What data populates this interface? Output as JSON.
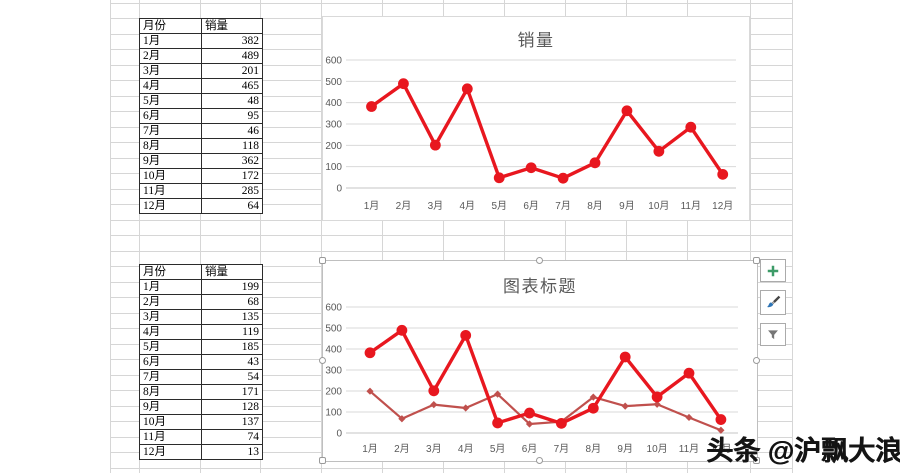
{
  "tables": [
    {
      "headers": [
        "月份",
        "销量"
      ],
      "rows": [
        [
          "1月",
          382
        ],
        [
          "2月",
          489
        ],
        [
          "3月",
          201
        ],
        [
          "4月",
          465
        ],
        [
          "5月",
          48
        ],
        [
          "6月",
          95
        ],
        [
          "7月",
          46
        ],
        [
          "8月",
          118
        ],
        [
          "9月",
          362
        ],
        [
          "10月",
          172
        ],
        [
          "11月",
          285
        ],
        [
          "12月",
          64
        ]
      ]
    },
    {
      "headers": [
        "月份",
        "销量"
      ],
      "rows": [
        [
          "1月",
          199
        ],
        [
          "2月",
          68
        ],
        [
          "3月",
          135
        ],
        [
          "4月",
          119
        ],
        [
          "5月",
          185
        ],
        [
          "6月",
          43
        ],
        [
          "7月",
          54
        ],
        [
          "8月",
          171
        ],
        [
          "9月",
          128
        ],
        [
          "10月",
          137
        ],
        [
          "11月",
          74
        ],
        [
          "12月",
          13
        ]
      ]
    }
  ],
  "chart_data": [
    {
      "type": "line",
      "title": "销量",
      "categories": [
        "1月",
        "2月",
        "3月",
        "4月",
        "5月",
        "6月",
        "7月",
        "8月",
        "9月",
        "10月",
        "11月",
        "12月"
      ],
      "series": [
        {
          "color": "#e8171f",
          "values": [
            382,
            489,
            201,
            465,
            48,
            95,
            46,
            118,
            362,
            172,
            285,
            64
          ]
        }
      ],
      "ylim": [
        0,
        600
      ],
      "ytick_step": 100,
      "grid": true,
      "legend": "none",
      "axis_label_color": "#595959"
    },
    {
      "type": "line",
      "title": "图表标题",
      "categories": [
        "1月",
        "2月",
        "3月",
        "4月",
        "5月",
        "6月",
        "7月",
        "8月",
        "9月",
        "10月",
        "11月",
        "12月"
      ],
      "series": [
        {
          "color": "#c0504d",
          "values": [
            199,
            68,
            135,
            119,
            185,
            43,
            54,
            171,
            128,
            137,
            74,
            13
          ]
        },
        {
          "color": "#e8171f",
          "values": [
            382,
            489,
            201,
            465,
            48,
            95,
            46,
            118,
            362,
            172,
            285,
            64
          ]
        }
      ],
      "ylim": [
        0,
        600
      ],
      "ytick_step": 100,
      "grid": true,
      "legend": "none",
      "axis_label_color": "#595959",
      "selected": true
    }
  ],
  "chart_tools": {
    "elements_icon": "plus-icon",
    "styles_icon": "paintbrush-icon",
    "filters_icon": "funnel-icon",
    "plus_color": "#3d9b68",
    "brush_tip_color": "#2e74b5",
    "funnel_color": "#767676"
  },
  "watermark": {
    "text": "头条 @沪飘大浪"
  }
}
